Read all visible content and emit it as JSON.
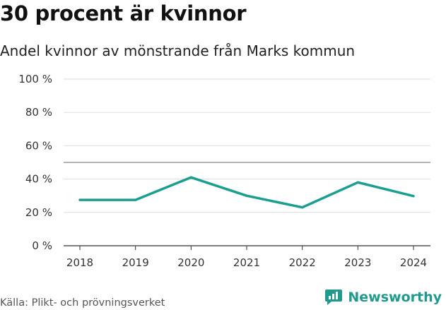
{
  "title": "30 procent är kvinnor",
  "subtitle": "Andel kvinnor av mönstrande från Marks kommun",
  "source": "Källa: Plikt- och prövningsverket",
  "brand": {
    "name": "Newsworthy",
    "icon": "newsworthy-logo-icon"
  },
  "colors": {
    "line": "#1a9e8f",
    "grid": "#dddddd",
    "reference": "#888888",
    "axis": "#333333"
  },
  "chart_data": {
    "type": "line",
    "x": [
      "2018",
      "2019",
      "2020",
      "2021",
      "2022",
      "2023",
      "2024"
    ],
    "series": [
      {
        "values": [
          27.5,
          27.5,
          41,
          30,
          23,
          38,
          29.8
        ]
      }
    ],
    "y_ticks": [
      0,
      20,
      40,
      60,
      80,
      100
    ],
    "y_tick_labels": [
      "0 %",
      "20 %",
      "40 %",
      "60 %",
      "80 %",
      "100 %"
    ],
    "ylim": [
      0,
      100
    ],
    "reference_line": 50,
    "grid": true
  }
}
